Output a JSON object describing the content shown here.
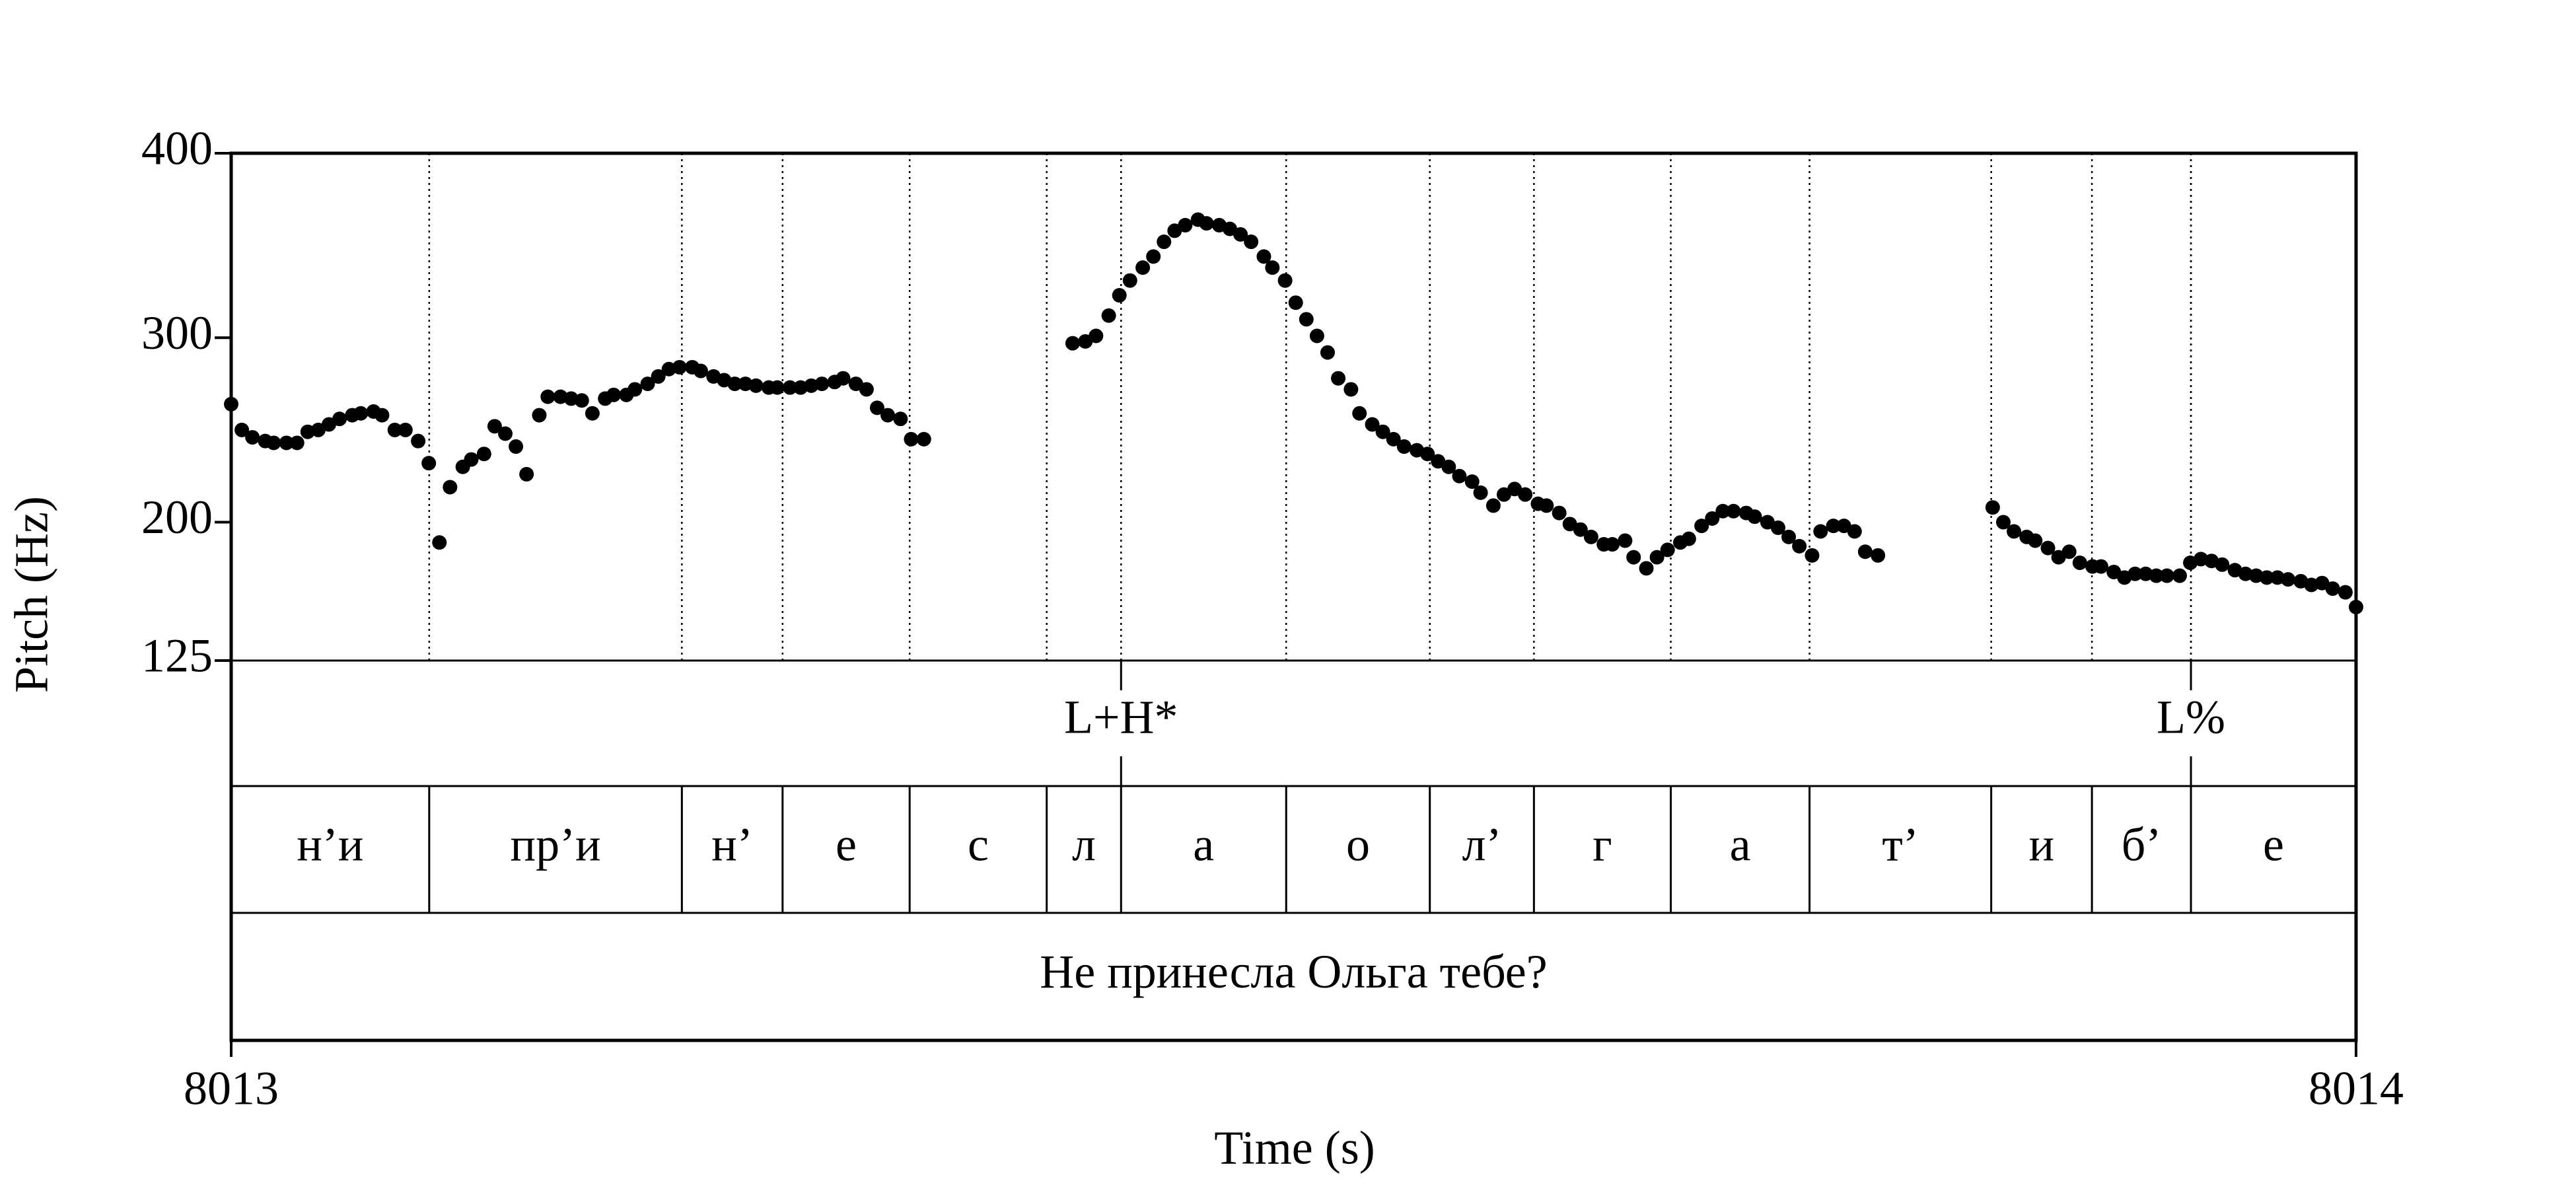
{
  "chart_data": {
    "type": "scatter",
    "ylabel": "Pitch (Hz)",
    "xlabel": "Time (s)",
    "xlim": [
      8013,
      8014
    ],
    "xticks": [
      8013,
      8014
    ],
    "ylim": [
      125,
      400
    ],
    "yticks": [
      125,
      200,
      300,
      400
    ],
    "series": [
      {
        "color": "#000000",
        "x": [
          8013.0,
          8013.005,
          8013.01,
          8013.016,
          8013.02,
          8013.026,
          8013.031,
          8013.036,
          8013.041,
          8013.046,
          8013.051,
          8013.057,
          8013.061,
          8013.067,
          8013.071,
          8013.077,
          8013.082,
          8013.088,
          8013.093,
          8013.098,
          8013.103,
          8013.109,
          8013.113,
          8013.119,
          8013.124,
          8013.129,
          8013.134,
          8013.139,
          8013.145,
          8013.149,
          8013.155,
          8013.16,
          8013.165,
          8013.17,
          8013.176,
          8013.18,
          8013.186,
          8013.19,
          8013.196,
          8013.201,
          8013.206,
          8013.211,
          8013.217,
          8013.221,
          8013.227,
          8013.232,
          8013.237,
          8013.242,
          8013.247,
          8013.253,
          8013.257,
          8013.263,
          8013.268,
          8013.273,
          8013.278,
          8013.284,
          8013.288,
          8013.294,
          8013.299,
          8013.304,
          8013.309,
          8013.315,
          8013.32,
          8013.326,
          8013.396,
          8013.402,
          8013.407,
          8013.413,
          8013.418,
          8013.423,
          8013.429,
          8013.434,
          8013.439,
          8013.444,
          8013.449,
          8013.455,
          8013.459,
          8013.465,
          8013.47,
          8013.475,
          8013.48,
          8013.486,
          8013.49,
          8013.496,
          8013.501,
          8013.506,
          8013.511,
          8013.516,
          8013.521,
          8013.527,
          8013.531,
          8013.537,
          8013.542,
          8013.547,
          8013.552,
          8013.558,
          8013.563,
          8013.568,
          8013.573,
          8013.578,
          8013.584,
          8013.588,
          8013.594,
          8013.599,
          8013.604,
          8013.609,
          8013.615,
          8013.619,
          8013.625,
          8013.63,
          8013.635,
          8013.64,
          8013.646,
          8013.65,
          8013.656,
          8013.66,
          8013.666,
          8013.671,
          8013.676,
          8013.682,
          8013.686,
          8013.692,
          8013.697,
          8013.702,
          8013.707,
          8013.713,
          8013.717,
          8013.723,
          8013.728,
          8013.733,
          8013.738,
          8013.744,
          8013.748,
          8013.754,
          8013.759,
          8013.764,
          8013.769,
          8013.775,
          8013.829,
          8013.834,
          8013.839,
          8013.845,
          8013.849,
          8013.855,
          8013.86,
          8013.865,
          8013.87,
          8013.876,
          8013.88,
          8013.886,
          8013.891,
          8013.896,
          8013.901,
          8013.906,
          8013.911,
          8013.917,
          8013.922,
          8013.927,
          8013.932,
          8013.937,
          8013.943,
          8013.948,
          8013.953,
          8013.958,
          8013.963,
          8013.968,
          8013.974,
          8013.979,
          8013.984,
          8013.989,
          8013.995,
          8014.0
        ],
        "values": [
          264,
          250,
          246,
          244,
          243,
          243,
          243,
          249,
          250,
          253,
          256,
          258,
          259,
          260,
          258,
          250,
          250,
          244,
          232,
          189,
          219,
          230,
          234,
          237,
          252,
          248,
          241,
          226,
          258,
          268,
          268,
          267,
          266,
          259,
          267,
          269,
          269,
          272,
          275,
          279,
          283,
          284,
          284,
          282,
          279,
          277,
          275,
          275,
          274,
          273,
          273,
          273,
          273,
          274,
          275,
          276,
          278,
          275,
          272,
          262,
          258,
          256,
          245,
          245,
          297,
          298,
          301,
          312,
          323,
          331,
          338,
          344,
          352,
          358,
          361,
          364,
          362,
          361,
          359,
          356,
          352,
          344,
          338,
          331,
          319,
          310,
          301,
          292,
          278,
          272,
          259,
          253,
          249,
          245,
          241,
          239,
          237,
          233,
          230,
          225,
          222,
          216,
          209,
          215,
          218,
          215,
          210,
          209,
          205,
          199,
          196,
          192,
          188,
          188,
          190,
          181,
          175,
          181,
          185,
          189,
          191,
          198,
          202,
          206,
          206,
          205,
          203,
          200,
          197,
          192,
          187,
          182,
          195,
          198,
          198,
          195,
          184,
          182,
          208,
          200,
          195,
          192,
          190,
          186,
          181,
          184,
          178,
          176,
          176,
          173,
          170,
          172,
          172,
          171,
          171,
          171,
          178,
          180,
          179,
          177,
          174,
          172,
          171,
          170,
          170,
          169,
          168,
          166,
          167,
          164,
          162,
          154
        ]
      }
    ],
    "tiers": [
      {
        "points": [
          {
            "time": 8013.4188,
            "label": "L+H*"
          },
          {
            "time": 8013.9223,
            "label": "L%"
          }
        ]
      },
      {
        "boundaries": [
          8013.0932,
          8013.2121,
          8013.2595,
          8013.3193,
          8013.3838,
          8013.4188,
          8013.4965,
          8013.5641,
          8013.6131,
          8013.6775,
          8013.7428,
          8013.8283,
          8013.8757,
          8013.9223
        ],
        "labels": [
          "н’и",
          "пр’и",
          "н’",
          "е",
          "с",
          "л",
          "а",
          "о",
          "л’",
          "г",
          "а",
          "т’",
          "и",
          "б’",
          "е"
        ]
      },
      {
        "labels": [
          "Не принесла Ольга тебе?"
        ]
      }
    ]
  }
}
